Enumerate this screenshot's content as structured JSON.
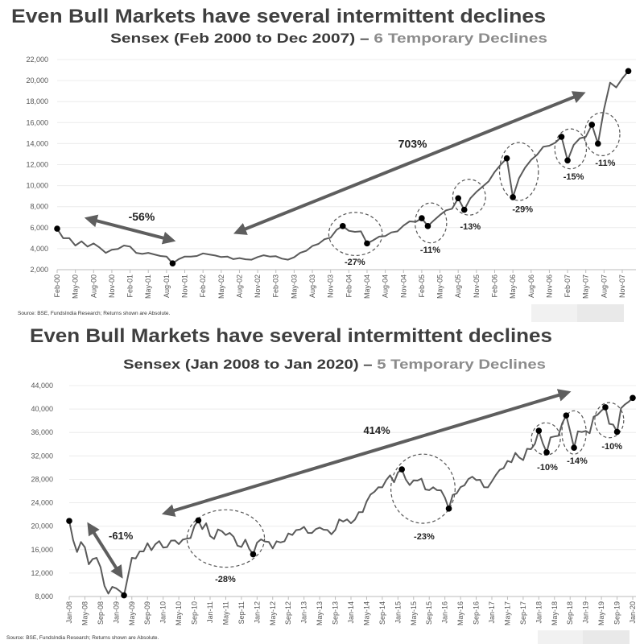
{
  "chart_data": [
    {
      "type": "line",
      "title": "Even Bull Markets have several intermittent declines",
      "subtitle_main": "Sensex (Feb 2000 to Dec 2007) – ",
      "subtitle_accent": "6 Temporary Declines",
      "source": "Source: BSE, FundsIndia Research; Returns shown are Absolute.",
      "ylim": [
        2000,
        22000
      ],
      "yticks": [
        2000,
        4000,
        6000,
        8000,
        10000,
        12000,
        14000,
        16000,
        18000,
        20000,
        22000
      ],
      "ytick_labels": [
        "2,000",
        "4,000",
        "6,000",
        "8,000",
        "10,000",
        "12,000",
        "14,000",
        "16,000",
        "18,000",
        "20,000",
        "22,000"
      ],
      "x_start": "Feb-00",
      "x_tick_step_months": 3,
      "xtick_labels": [
        "Feb-00",
        "May-00",
        "Aug-00",
        "Nov-00",
        "Feb-01",
        "May-01",
        "Aug-01",
        "Nov-01",
        "Feb-02",
        "May-02",
        "Aug-02",
        "Nov-02",
        "Feb-03",
        "May-03",
        "Aug-03",
        "Nov-03",
        "Feb-04",
        "May-04",
        "Aug-04",
        "Nov-04",
        "Feb-05",
        "May-05",
        "Aug-05",
        "Nov-05",
        "Feb-06",
        "May-06",
        "Aug-06",
        "Nov-06",
        "Feb-07",
        "May-07",
        "Aug-07",
        "Nov-07"
      ],
      "grid": true,
      "series": [
        {
          "name": "Sensex",
          "values": [
            5900,
            5000,
            5000,
            4300,
            4700,
            4200,
            4500,
            4100,
            3600,
            3900,
            3970,
            4300,
            4200,
            3600,
            3500,
            3600,
            3450,
            3300,
            3250,
            2600,
            3000,
            3250,
            3250,
            3300,
            3550,
            3450,
            3350,
            3200,
            3250,
            3000,
            3100,
            2990,
            2950,
            3200,
            3370,
            3250,
            3280,
            3050,
            2950,
            3180,
            3600,
            3800,
            4250,
            4450,
            4900,
            5050,
            5800,
            6150,
            5700,
            5600,
            5650,
            4500,
            4800,
            5150,
            5200,
            5550,
            5650,
            6200,
            6600,
            6550,
            6900,
            6150,
            6700,
            7200,
            7650,
            7800,
            8800,
            7700,
            8800,
            9400,
            9900,
            10400,
            11300,
            12000,
            12600,
            8900,
            10700,
            11700,
            12450,
            12950,
            13700,
            13800,
            14100,
            14650,
            12400,
            13870,
            14500,
            14650,
            15800,
            14000,
            17300,
            19800,
            19350,
            20200,
            20900
          ]
        }
      ],
      "markers": [
        [
          0,
          5900
        ],
        [
          19,
          2600
        ],
        [
          47,
          6150
        ],
        [
          51,
          4500
        ],
        [
          60,
          6900
        ],
        [
          61,
          6150
        ],
        [
          66,
          8800
        ],
        [
          67,
          7700
        ],
        [
          74,
          12600
        ],
        [
          75,
          8900
        ],
        [
          83,
          14650
        ],
        [
          84,
          12400
        ],
        [
          88,
          15800
        ],
        [
          89,
          14000
        ],
        [
          94,
          20900
        ]
      ],
      "arrows": [
        {
          "label": "-56%",
          "from": [
            5.3,
            6830
          ],
          "to": [
            18.7,
            4835
          ],
          "label_at": [
            13.9,
            7050
          ]
        },
        {
          "label": "703%",
          "from": [
            29.8,
            5600
          ],
          "to": [
            86.2,
            18700
          ],
          "label_at": [
            58.5,
            14000
          ]
        }
      ],
      "declines": [
        {
          "label": "-27%",
          "center": [
            49.1,
            5400
          ],
          "span_months": 4.4,
          "span_value": 2050,
          "label_at": [
            49,
            2750
          ]
        },
        {
          "label": "-11%",
          "center": [
            61.5,
            6450
          ],
          "span_months": 2.6,
          "span_value": 1900,
          "label_at": [
            61.4,
            3900
          ]
        },
        {
          "label": "-13%",
          "center": [
            67.8,
            8900
          ],
          "span_months": 2.7,
          "span_value": 1700,
          "label_at": [
            68,
            6150
          ]
        },
        {
          "label": "-29%",
          "center": [
            76,
            11350
          ],
          "span_months": 3.2,
          "span_value": 2760,
          "label_at": [
            76.6,
            7800
          ]
        },
        {
          "label": "-15%",
          "center": [
            84.5,
            13500
          ],
          "span_months": 2.6,
          "span_value": 1900,
          "label_at": [
            85,
            10900
          ]
        },
        {
          "label": "-11%",
          "center": [
            89.7,
            14900
          ],
          "span_months": 2.9,
          "span_value": 2050,
          "label_at": [
            90.2,
            12200
          ]
        }
      ]
    },
    {
      "type": "line",
      "title": "Even Bull Markets have several intermittent declines",
      "subtitle_main": "Sensex (Jan 2008 to Jan 2020) – ",
      "subtitle_accent": "5 Temporary Declines",
      "source": "Source: BSE, FundsIndia Research; Returns shown are Absolute.",
      "ylim": [
        8000,
        44000
      ],
      "yticks": [
        8000,
        12000,
        16000,
        20000,
        24000,
        28000,
        32000,
        36000,
        40000,
        44000
      ],
      "ytick_labels": [
        "8,000",
        "12,000",
        "16,000",
        "20,000",
        "24,000",
        "28,000",
        "32,000",
        "36,000",
        "40,000",
        "44,000"
      ],
      "x_start": "Jan-08",
      "x_tick_step_months": 4,
      "xtick_labels": [
        "Jan-08",
        "May-08",
        "Sep-08",
        "Jan-09",
        "May-09",
        "Sep-09",
        "Jan-10",
        "May-10",
        "Sep-10",
        "Jan-11",
        "May-11",
        "Sep-11",
        "Jan-12",
        "May-12",
        "Sep-12",
        "Jan-13",
        "May-13",
        "Sep-13",
        "Jan-14",
        "May-14",
        "Sep-14",
        "Jan-15",
        "May-15",
        "Sep-15",
        "Jan-16",
        "May-16",
        "Sep-16",
        "Jan-17",
        "May-17",
        "Sep-17",
        "Jan-18",
        "May-18",
        "Sep-18",
        "Jan-19",
        "May-19",
        "Sep-19",
        "Jan-20"
      ],
      "grid": true,
      "series": [
        {
          "name": "Sensex",
          "values": [
            20900,
            17600,
            15600,
            17300,
            16400,
            13500,
            14400,
            14600,
            13000,
            9800,
            8500,
            9650,
            9400,
            8900,
            8200,
            11400,
            14600,
            14500,
            15700,
            15700,
            17100,
            15900,
            16900,
            17460,
            16350,
            16430,
            17530,
            17560,
            16940,
            17700,
            17870,
            17970,
            20070,
            21000,
            19520,
            20500,
            18330,
            17820,
            19450,
            19140,
            18500,
            18850,
            18200,
            16680,
            16450,
            17700,
            16120,
            15200,
            17190,
            17750,
            17400,
            17320,
            16220,
            17430,
            17240,
            17430,
            18760,
            18500,
            19340,
            19430,
            19890,
            18860,
            18840,
            19500,
            19760,
            19400,
            19350,
            18620,
            19380,
            21160,
            20790,
            21170,
            20510,
            21120,
            22390,
            22420,
            24220,
            25410,
            25890,
            26640,
            26630,
            27870,
            28690,
            27500,
            29180,
            29700,
            27960,
            27010,
            27830,
            27780,
            28110,
            26280,
            26150,
            26650,
            26150,
            26120,
            24870,
            23000,
            25340,
            25600,
            26670,
            26990,
            28050,
            28450,
            27870,
            27930,
            26650,
            26630,
            27650,
            28740,
            29620,
            29920,
            31140,
            30920,
            32510,
            31730,
            31280,
            33210,
            33150,
            34060,
            36300,
            34180,
            32600,
            35160,
            35320,
            35420,
            37600,
            38900,
            36230,
            33400,
            36190,
            36070,
            36260,
            35870,
            38670,
            39030,
            39710,
            40300,
            37480,
            37330,
            36100,
            40130,
            40790,
            41250,
            41900
          ]
        }
      ],
      "markers": [
        [
          0,
          20900
        ],
        [
          14,
          8200
        ],
        [
          33,
          21000
        ],
        [
          47,
          15200
        ],
        [
          85,
          29700
        ],
        [
          97,
          23000
        ],
        [
          120,
          36300
        ],
        [
          122,
          32600
        ],
        [
          127,
          38900
        ],
        [
          129,
          33400
        ],
        [
          137,
          40300
        ],
        [
          140,
          36100
        ],
        [
          144,
          41900
        ]
      ],
      "arrows": [
        {
          "label": "-61%",
          "from": [
            5.3,
            19950
          ],
          "to": [
            13,
            11800
          ],
          "label_at": [
            13.2,
            18450
          ]
        },
        {
          "label": "414%",
          "from": [
            24.9,
            22300
          ],
          "to": [
            127,
            42750
          ],
          "label_at": [
            78.6,
            36450
          ]
        }
      ],
      "declines": [
        {
          "label": "-28%",
          "center": [
            40,
            17900
          ],
          "span_months": 9.9,
          "span_value": 4900,
          "label_at": [
            39.9,
            11000
          ]
        },
        {
          "label": "-23%",
          "center": [
            90.4,
            26400
          ],
          "span_months": 8.2,
          "span_value": 5900,
          "label_at": [
            90.7,
            18300
          ]
        },
        {
          "label": "-10%",
          "center": [
            121.8,
            34900
          ],
          "span_months": 3.7,
          "span_value": 2750,
          "label_at": [
            122.2,
            30100
          ]
        },
        {
          "label": "-14%",
          "center": [
            129,
            36000
          ],
          "span_months": 3.1,
          "span_value": 3700,
          "label_at": [
            129.8,
            31200
          ]
        },
        {
          "label": "-10%",
          "center": [
            138,
            38100
          ],
          "span_months": 3.7,
          "span_value": 3000,
          "label_at": [
            138.7,
            33700
          ]
        }
      ]
    }
  ]
}
